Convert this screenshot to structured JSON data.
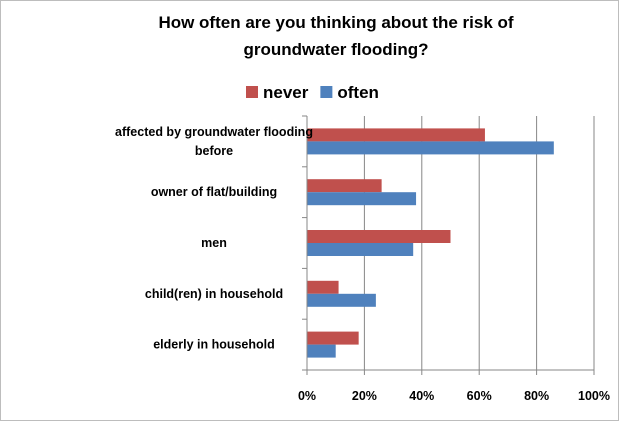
{
  "chart_data": {
    "type": "bar",
    "orientation": "horizontal",
    "title": [
      "How often are you thinking about the risk of",
      "groundwater flooding?"
    ],
    "categories": [
      [
        "affected by groundwater flooding",
        "before"
      ],
      [
        "owner of flat/building"
      ],
      [
        "men"
      ],
      [
        "child(ren) in household"
      ],
      [
        "elderly in household"
      ]
    ],
    "series": [
      {
        "name": "never",
        "color": "#c0504d",
        "values": [
          62,
          26,
          50,
          11,
          18
        ]
      },
      {
        "name": "often",
        "color": "#4f81bd",
        "values": [
          86,
          38,
          37,
          24,
          10
        ]
      }
    ],
    "xlim": [
      0,
      100
    ],
    "xticks": [
      "0%",
      "20%",
      "40%",
      "60%",
      "80%",
      "100%"
    ],
    "grid": true,
    "legend_position": "top"
  }
}
